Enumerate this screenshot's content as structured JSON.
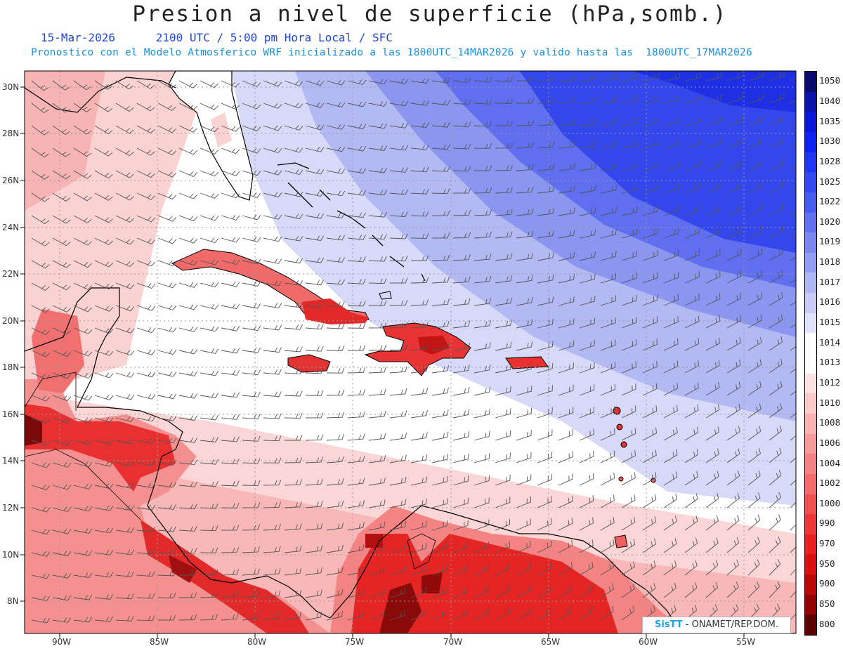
{
  "title": "Presion a nivel de superficie (hPa,somb.)",
  "subtitle": "15-Mar-2026      2100 UTC / 5:00 pm Hora Local / SFC",
  "info": "Pronostico con el Modelo Atmosferico WRF inicializado a las 1800UTC_14MAR2026 y valido hasta las  1800UTC_17MAR2026",
  "map": {
    "lat_range": [
      7,
      30.6
    ],
    "lon_range": [
      -92,
      -54
    ],
    "lat_ticks": [
      "30N",
      "28N",
      "26N",
      "24N",
      "22N",
      "20N",
      "18N",
      "16N",
      "14N",
      "12N",
      "10N",
      "8N"
    ],
    "lon_ticks": [
      "90W",
      "85W",
      "80W",
      "75W",
      "70W",
      "65W",
      "60W",
      "55W"
    ],
    "colors": {
      "high_dark": "#1f37e8",
      "high_mid": "#8a98f0",
      "neutral": "#ffffff",
      "low_mid": "#f6a8a8",
      "low_dark": "#e21a1a",
      "coast": "#000000",
      "barb": "#444444",
      "grid": "#999999"
    }
  },
  "colorbar": {
    "levels": [
      "1050",
      "1040",
      "1035",
      "1030",
      "1028",
      "1025",
      "1022",
      "1020",
      "1019",
      "1018",
      "1017",
      "1016",
      "1015",
      "1014",
      "1013",
      "1012",
      "1010",
      "1008",
      "1006",
      "1004",
      "1002",
      "1000",
      "990",
      "970",
      "950",
      "900",
      "850",
      "800"
    ],
    "colors": [
      "#0a0a6a",
      "#0a14a8",
      "#0c18d8",
      "#0e22f2",
      "#2036f0",
      "#3348ee",
      "#4a5cee",
      "#6272ee",
      "#7a88f0",
      "#939ef2",
      "#adb5f4",
      "#c6ccf6",
      "#e0e3fa",
      "#ffffff",
      "#ffffff",
      "#fde2e2",
      "#fbcaca",
      "#f9b2b2",
      "#f79a9a",
      "#f58282",
      "#f26a6a",
      "#ef5050",
      "#ec3838",
      "#e82020",
      "#d81010",
      "#b80808",
      "#900404",
      "#5a0202"
    ]
  },
  "credit": {
    "brand": "SisTT",
    "text": " - ONAMET/REP.DOM."
  }
}
